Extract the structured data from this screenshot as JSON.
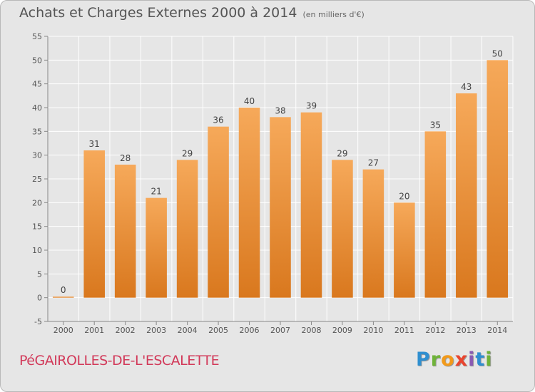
{
  "header": {
    "title": "Achats et Charges Externes 2000 à 2014",
    "unit": "(en milliers d'€)"
  },
  "footer": {
    "commune": "PéGAIROLLES-DE-L'ESCALETTE",
    "logo": [
      "P",
      "r",
      "o",
      "x",
      "i",
      "t",
      "i"
    ]
  },
  "colors": {
    "bar_light": "#f6a95a",
    "bar_dark": "#d9781e",
    "background": "#e6e6e6",
    "grid": "#ffffff",
    "commune_text": "#d23a5a"
  },
  "chart_data": {
    "type": "bar",
    "title": "Achats et Charges Externes 2000 à 2014",
    "subtitle": "(en milliers d'€)",
    "xlabel": "",
    "ylabel": "",
    "categories": [
      "2000",
      "2001",
      "2002",
      "2003",
      "2004",
      "2005",
      "2006",
      "2007",
      "2008",
      "2009",
      "2010",
      "2011",
      "2012",
      "2013",
      "2014"
    ],
    "values": [
      0,
      31,
      28,
      21,
      29,
      36,
      40,
      38,
      39,
      29,
      27,
      20,
      35,
      43,
      50
    ],
    "data_labels": [
      "0",
      "31",
      "28",
      "21",
      "29",
      "36",
      "40",
      "38",
      "39",
      "29",
      "27",
      "20",
      "35",
      "43",
      "50"
    ],
    "ylim": [
      -5,
      55
    ],
    "yticks": [
      -5,
      0,
      5,
      10,
      15,
      20,
      25,
      30,
      35,
      40,
      45,
      50,
      55
    ],
    "grid": true,
    "legend": "none"
  }
}
